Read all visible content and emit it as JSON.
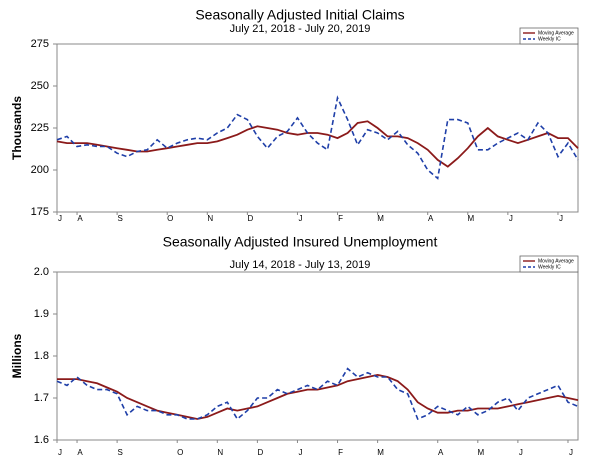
{
  "chart_data": [
    {
      "type": "line",
      "title": "Seasonally Adjusted Initial Claims",
      "subtitle": "July 21, 2018 - July 20, 2019",
      "y_label": "Thousands",
      "categories": [
        "J",
        null,
        "A",
        null,
        null,
        null,
        "S",
        null,
        null,
        null,
        null,
        "O",
        null,
        null,
        null,
        "N",
        null,
        null,
        null,
        "D",
        null,
        null,
        null,
        null,
        "J",
        null,
        null,
        null,
        "F",
        null,
        null,
        null,
        "M",
        null,
        null,
        null,
        null,
        "A",
        null,
        null,
        null,
        "M",
        null,
        null,
        null,
        "J",
        null,
        null,
        null,
        null,
        "J",
        null,
        null
      ],
      "series": [
        {
          "name": "Moving Average",
          "color": "#8b1a1a",
          "line_style": "solid",
          "values": [
            217,
            216,
            216,
            216,
            215,
            214,
            213,
            212,
            211,
            211,
            212,
            213,
            214,
            215,
            216,
            216,
            217,
            219,
            221,
            224,
            226,
            225,
            224,
            222,
            221,
            222,
            222,
            221,
            219,
            222,
            228,
            229,
            225,
            220,
            220,
            219,
            216,
            212,
            206,
            202,
            207,
            213,
            220,
            225,
            220,
            218,
            216,
            218,
            220,
            222,
            219,
            219,
            213
          ]
        },
        {
          "name": "Weekly IC",
          "color": "#1f3fa8",
          "line_style": "dashed",
          "values": [
            218,
            220,
            214,
            215,
            214,
            214,
            210,
            208,
            211,
            212,
            218,
            213,
            216,
            218,
            219,
            218,
            222,
            225,
            233,
            230,
            220,
            213,
            220,
            223,
            231,
            222,
            216,
            212,
            243,
            230,
            215,
            224,
            222,
            218,
            223,
            215,
            210,
            200,
            195,
            230,
            230,
            228,
            212,
            212,
            216,
            219,
            222,
            218,
            228,
            222,
            208,
            216,
            206
          ]
        }
      ],
      "ylim": [
        175,
        275
      ],
      "yticks": [
        175,
        200,
        225,
        250,
        275
      ],
      "grid": false,
      "legend": "top-right"
    },
    {
      "type": "line",
      "title": "Seasonally Adjusted Insured Unemployment",
      "subtitle": "July 14, 2018 - July 13, 2019",
      "y_label": "Millions",
      "categories": [
        "J",
        null,
        "A",
        null,
        null,
        null,
        "S",
        null,
        null,
        null,
        null,
        null,
        "O",
        null,
        null,
        null,
        "N",
        null,
        null,
        null,
        "D",
        null,
        null,
        null,
        "J",
        null,
        null,
        null,
        "F",
        null,
        null,
        null,
        "M",
        null,
        null,
        null,
        null,
        null,
        "A",
        null,
        null,
        null,
        "M",
        null,
        null,
        null,
        "J",
        null,
        null,
        null,
        null,
        "J",
        null
      ],
      "series": [
        {
          "name": "Moving Average",
          "color": "#8b1a1a",
          "line_style": "solid",
          "values": [
            1.745,
            1.745,
            1.745,
            1.74,
            1.735,
            1.725,
            1.715,
            1.7,
            1.69,
            1.68,
            1.67,
            1.665,
            1.66,
            1.655,
            1.65,
            1.655,
            1.665,
            1.675,
            1.67,
            1.675,
            1.68,
            1.69,
            1.7,
            1.71,
            1.715,
            1.72,
            1.72,
            1.725,
            1.73,
            1.74,
            1.745,
            1.75,
            1.755,
            1.75,
            1.74,
            1.72,
            1.69,
            1.675,
            1.665,
            1.665,
            1.67,
            1.67,
            1.675,
            1.675,
            1.675,
            1.68,
            1.685,
            1.69,
            1.695,
            1.7,
            1.705,
            1.7,
            1.695
          ]
        },
        {
          "name": "Weekly IC",
          "color": "#1f3fa8",
          "line_style": "dashed",
          "values": [
            1.74,
            1.73,
            1.75,
            1.73,
            1.72,
            1.72,
            1.71,
            1.66,
            1.68,
            1.67,
            1.67,
            1.66,
            1.66,
            1.65,
            1.65,
            1.66,
            1.68,
            1.69,
            1.65,
            1.67,
            1.7,
            1.7,
            1.72,
            1.71,
            1.72,
            1.73,
            1.72,
            1.74,
            1.73,
            1.77,
            1.75,
            1.76,
            1.75,
            1.75,
            1.72,
            1.71,
            1.65,
            1.66,
            1.68,
            1.67,
            1.66,
            1.68,
            1.66,
            1.67,
            1.69,
            1.7,
            1.67,
            1.7,
            1.71,
            1.72,
            1.73,
            1.69,
            1.68
          ]
        }
      ],
      "ylim": [
        1.6,
        2.0
      ],
      "yticks": [
        1.6,
        1.7,
        1.8,
        1.9,
        {
          "value": 2.0,
          "label": "2.0"
        }
      ],
      "grid": false,
      "legend": "top-right"
    }
  ]
}
